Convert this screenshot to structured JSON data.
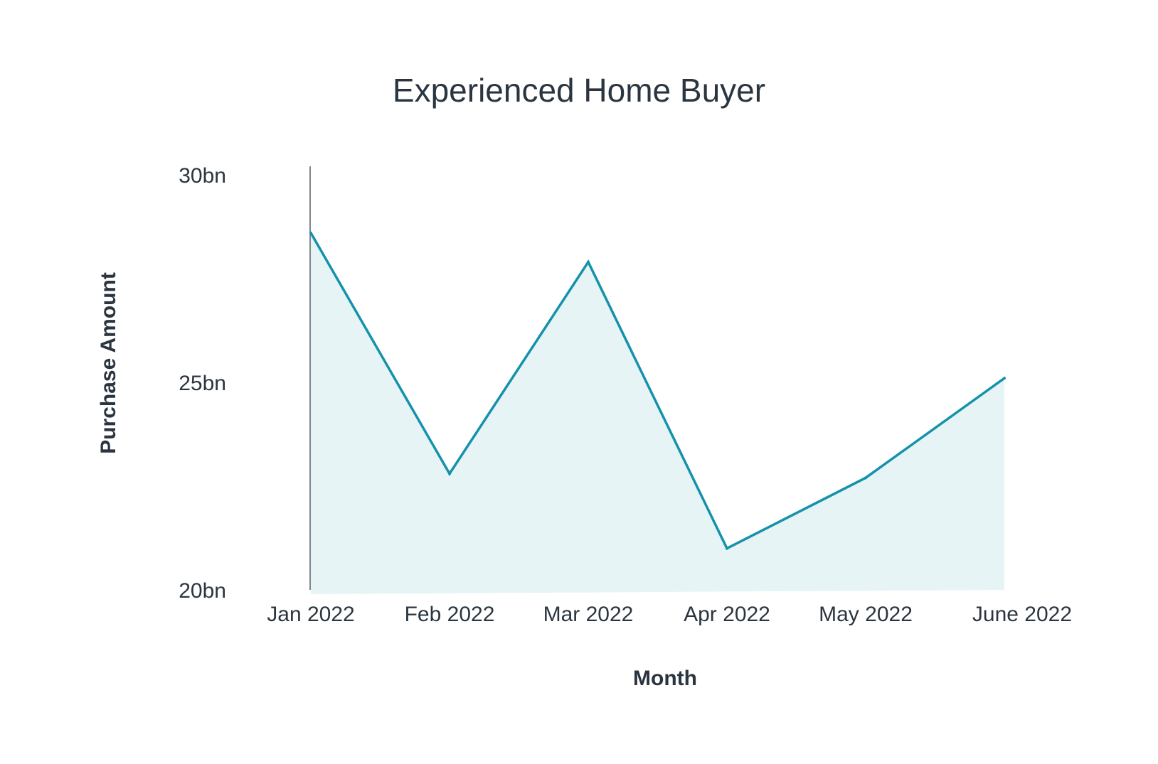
{
  "chart_data": {
    "type": "area",
    "title": "Experienced Home Buyer",
    "xlabel": "Month",
    "ylabel": "Purchase Amount",
    "categories": [
      "Jan 2022",
      "Feb 2022",
      "Mar 2022",
      "Apr 2022",
      "May 2022",
      "June 2022"
    ],
    "series": [
      {
        "values": [
          28.6,
          22.8,
          27.9,
          21.0,
          22.7,
          25.1
        ]
      }
    ],
    "y_ticks": [
      {
        "value": 30,
        "label": "30bn"
      },
      {
        "value": 25,
        "label": "25bn"
      },
      {
        "value": 20,
        "label": "20bn"
      }
    ],
    "ylim": [
      20,
      30
    ],
    "grid": false,
    "legend": "none",
    "colors": {
      "line": "#1592ab",
      "fill": "#e6f4f5",
      "axis": "#2b3540",
      "text": "#2b3540"
    }
  }
}
